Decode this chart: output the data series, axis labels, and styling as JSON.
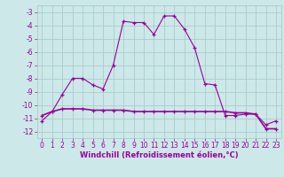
{
  "hours": [
    0,
    1,
    2,
    3,
    4,
    5,
    6,
    7,
    8,
    9,
    10,
    11,
    12,
    13,
    14,
    15,
    16,
    17,
    18,
    19,
    20,
    21,
    22,
    23
  ],
  "temp1": [
    -11.2,
    -10.5,
    -9.2,
    -8.0,
    -8.0,
    -8.5,
    -8.8,
    -7.0,
    -3.7,
    -3.8,
    -3.8,
    -4.7,
    -3.3,
    -3.3,
    -4.3,
    -5.7,
    -8.4,
    -8.5,
    -10.8,
    -10.8,
    -10.7,
    -10.7,
    -11.5,
    -11.2
  ],
  "temp2": [
    -10.8,
    -10.5,
    -10.3,
    -10.3,
    -10.3,
    -10.4,
    -10.4,
    -10.4,
    -10.4,
    -10.5,
    -10.5,
    -10.5,
    -10.5,
    -10.5,
    -10.5,
    -10.5,
    -10.5,
    -10.5,
    -10.5,
    -10.6,
    -10.6,
    -10.7,
    -11.8,
    -11.8
  ],
  "line_color": "#990099",
  "bg_color": "#cce8e8",
  "grid_color": "#aacccc",
  "xlabel": "Windchill (Refroidissement éolien,°C)",
  "ylim": [
    -12.5,
    -2.5
  ],
  "xlim": [
    -0.5,
    23.5
  ],
  "yticks": [
    -3,
    -4,
    -5,
    -6,
    -7,
    -8,
    -9,
    -10,
    -11,
    -12
  ],
  "xticks": [
    0,
    1,
    2,
    3,
    4,
    5,
    6,
    7,
    8,
    9,
    10,
    11,
    12,
    13,
    14,
    15,
    16,
    17,
    18,
    19,
    20,
    21,
    22,
    23
  ],
  "tick_fontsize": 5.5,
  "xlabel_fontsize": 6.0
}
